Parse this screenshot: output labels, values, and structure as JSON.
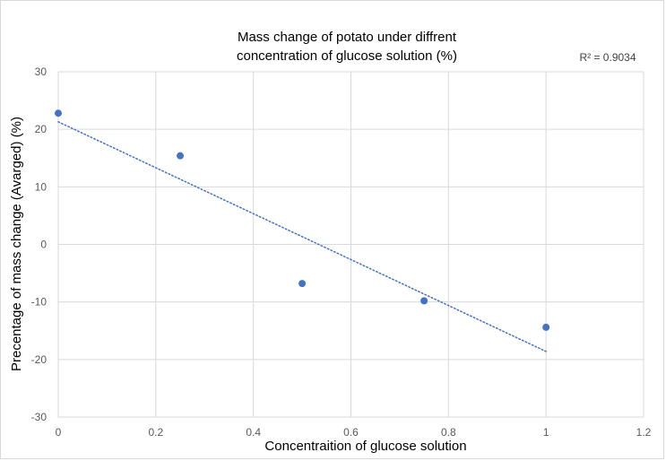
{
  "chart_data": {
    "type": "scatter",
    "title_lines": [
      "Mass change of potato under diffrent",
      "concentration of glucose solution  (%)"
    ],
    "xlabel": "Concentraition of glucose solution",
    "ylabel": "Precentage of mass change (Avarged) (%)",
    "xlim": [
      0,
      1.2
    ],
    "ylim": [
      -30,
      30
    ],
    "x_ticks": [
      "0",
      "0.2",
      "0.4",
      "0.6",
      "0.8",
      "1",
      "1.2"
    ],
    "y_ticks": [
      "30",
      "20",
      "10",
      "0",
      "-10",
      "-20",
      "-30"
    ],
    "grid": true,
    "series": [
      {
        "points": [
          {
            "x": 0,
            "y": 22.8
          },
          {
            "x": 0.25,
            "y": 15.4
          },
          {
            "x": 0.5,
            "y": -6.8
          },
          {
            "x": 0.75,
            "y": -9.8
          },
          {
            "x": 1,
            "y": -14.4
          }
        ],
        "color": "#4472c4"
      }
    ],
    "trendline": {
      "type": "linear",
      "style": "dotted",
      "color": "#4472c4",
      "x": [
        0,
        1
      ],
      "y": [
        21.3,
        -18.6
      ],
      "r2_label": "R² = 0.9034"
    }
  }
}
